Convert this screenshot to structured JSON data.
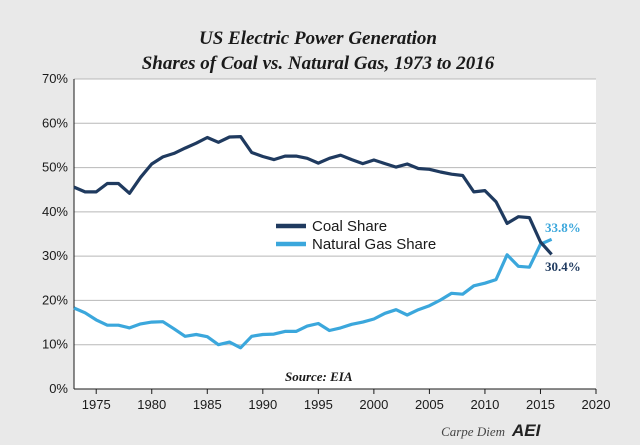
{
  "chart_data": {
    "type": "line",
    "title": "US Electric Power Generation",
    "subtitle": "Shares of Coal vs. Natural Gas, 1973 to 2016",
    "xlabel": "",
    "ylabel": "",
    "xlim": [
      1973,
      2020
    ],
    "ylim": [
      0,
      70
    ],
    "x_ticks": [
      "1975",
      "1980",
      "1985",
      "1990",
      "1995",
      "2000",
      "2005",
      "2010",
      "2015",
      "2020"
    ],
    "y_ticks": [
      "0%",
      "10%",
      "20%",
      "30%",
      "40%",
      "50%",
      "60%",
      "70%"
    ],
    "grid": "horizontal",
    "legend_position": "center",
    "x": [
      1973,
      1974,
      1975,
      1976,
      1977,
      1978,
      1979,
      1980,
      1981,
      1982,
      1983,
      1984,
      1985,
      1986,
      1987,
      1988,
      1989,
      1990,
      1991,
      1992,
      1993,
      1994,
      1995,
      1996,
      1997,
      1998,
      1999,
      2000,
      2001,
      2002,
      2003,
      2004,
      2005,
      2006,
      2007,
      2008,
      2009,
      2010,
      2011,
      2012,
      2013,
      2014,
      2015,
      2016
    ],
    "series": [
      {
        "name": "Coal Share",
        "color": "#1f3a5f",
        "end_label": "30.4%",
        "values": [
          45.6,
          44.5,
          44.5,
          46.4,
          46.4,
          44.2,
          47.8,
          50.8,
          52.4,
          53.2,
          54.4,
          55.5,
          56.8,
          55.7,
          56.9,
          57.0,
          53.4,
          52.5,
          51.8,
          52.6,
          52.6,
          52.1,
          51.0,
          52.1,
          52.8,
          51.8,
          50.9,
          51.7,
          50.9,
          50.1,
          50.8,
          49.8,
          49.6,
          49.0,
          48.5,
          48.2,
          44.5,
          44.8,
          42.3,
          37.4,
          38.9,
          38.7,
          33.2,
          30.4
        ]
      },
      {
        "name": "Natural Gas Share",
        "color": "#3ba7dc",
        "end_label": "33.8%",
        "values": [
          18.3,
          17.2,
          15.6,
          14.4,
          14.4,
          13.8,
          14.7,
          15.1,
          15.2,
          13.6,
          11.9,
          12.3,
          11.8,
          10.0,
          10.6,
          9.3,
          11.9,
          12.3,
          12.4,
          13.0,
          13.0,
          14.2,
          14.8,
          13.2,
          13.8,
          14.6,
          15.1,
          15.8,
          17.1,
          17.9,
          16.7,
          17.9,
          18.8,
          20.1,
          21.6,
          21.4,
          23.3,
          23.9,
          24.7,
          30.3,
          27.7,
          27.5,
          32.7,
          33.8
        ]
      }
    ],
    "source": "Source: EIA"
  },
  "footer": {
    "credit": "Carpe Diem",
    "logo": "AEI"
  }
}
